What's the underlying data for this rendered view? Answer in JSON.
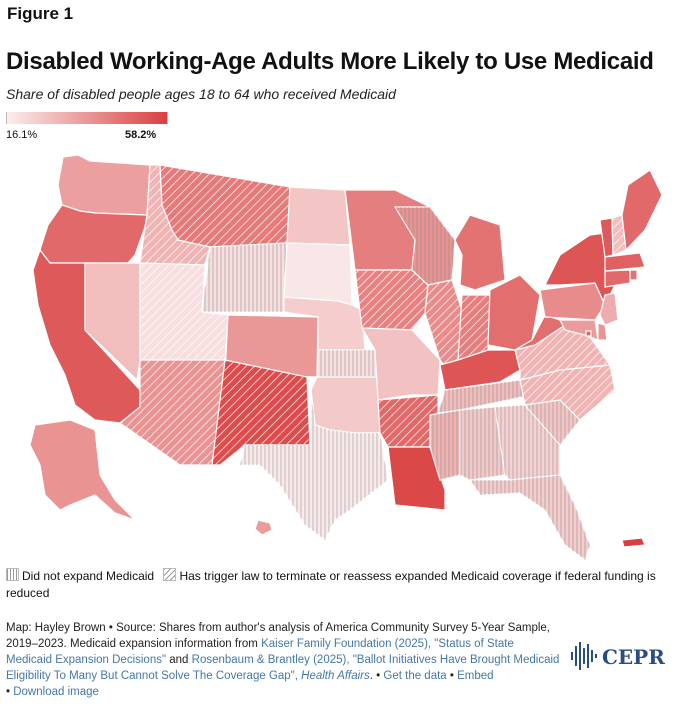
{
  "figure_label": "Figure 1",
  "title": "Disabled Working-Age Adults More Likely to Use Medicaid",
  "subtitle": "Share of disabled people ages 18 to 64 who received Medicaid",
  "legend": {
    "min_label": "16.1%",
    "max_label": "58.2%",
    "min_color": "#fbeeee",
    "max_color": "#d93f3f",
    "not_expanded_label": "Did not expand Medicaid",
    "trigger_law_label": "Has trigger law to terminate or reassess expanded Medicaid coverage if federal funding is reduced"
  },
  "chart_data": {
    "type": "choropleth",
    "title": "Disabled Working-Age Adults More Likely to Use Medicaid",
    "subtitle": "Share of disabled people ages 18 to 64 who received Medicaid",
    "scale": {
      "min": 16.1,
      "max": 58.2,
      "unit": "%"
    },
    "states": [
      {
        "id": "WA",
        "value": 35,
        "status": "expanded"
      },
      {
        "id": "OR",
        "value": 48,
        "status": "expanded"
      },
      {
        "id": "CA",
        "value": 52,
        "status": "expanded"
      },
      {
        "id": "NV",
        "value": 28,
        "status": "expanded"
      },
      {
        "id": "ID",
        "value": 30,
        "status": "trigger"
      },
      {
        "id": "MT",
        "value": 44,
        "status": "trigger"
      },
      {
        "id": "WY",
        "value": 20,
        "status": "not_expanded"
      },
      {
        "id": "UT",
        "value": 20,
        "status": "trigger"
      },
      {
        "id": "AZ",
        "value": 38,
        "status": "trigger"
      },
      {
        "id": "CO",
        "value": 37,
        "status": "expanded"
      },
      {
        "id": "NM",
        "value": 55,
        "status": "trigger"
      },
      {
        "id": "ND",
        "value": 26,
        "status": "expanded"
      },
      {
        "id": "SD",
        "value": 18,
        "status": "expanded"
      },
      {
        "id": "NE",
        "value": 24,
        "status": "expanded"
      },
      {
        "id": "KS",
        "value": 20,
        "status": "not_expanded"
      },
      {
        "id": "OK",
        "value": 25,
        "status": "expanded"
      },
      {
        "id": "TX",
        "value": 17,
        "status": "not_expanded"
      },
      {
        "id": "MN",
        "value": 43,
        "status": "expanded"
      },
      {
        "id": "IA",
        "value": 42,
        "status": "trigger"
      },
      {
        "id": "MO",
        "value": 27,
        "status": "expanded"
      },
      {
        "id": "AR",
        "value": 48,
        "status": "trigger"
      },
      {
        "id": "LA",
        "value": 56,
        "status": "expanded"
      },
      {
        "id": "WI",
        "value": 38,
        "status": "not_expanded"
      },
      {
        "id": "IL",
        "value": 40,
        "status": "trigger"
      },
      {
        "id": "MI",
        "value": 46,
        "status": "expanded"
      },
      {
        "id": "IN",
        "value": 43,
        "status": "trigger"
      },
      {
        "id": "OH",
        "value": 47,
        "status": "expanded"
      },
      {
        "id": "KY",
        "value": 53,
        "status": "expanded"
      },
      {
        "id": "TN",
        "value": 28,
        "status": "not_expanded"
      },
      {
        "id": "MS",
        "value": 30,
        "status": "not_expanded"
      },
      {
        "id": "AL",
        "value": 25,
        "status": "not_expanded"
      },
      {
        "id": "GA",
        "value": 23,
        "status": "not_expanded"
      },
      {
        "id": "FL",
        "value": 24,
        "status": "not_expanded"
      },
      {
        "id": "SC",
        "value": 26,
        "status": "not_expanded"
      },
      {
        "id": "NC",
        "value": 30,
        "status": "trigger"
      },
      {
        "id": "VA",
        "value": 30,
        "status": "trigger"
      },
      {
        "id": "WV",
        "value": 47,
        "status": "expanded"
      },
      {
        "id": "PA",
        "value": 40,
        "status": "expanded"
      },
      {
        "id": "NY",
        "value": 53,
        "status": "expanded"
      },
      {
        "id": "NJ",
        "value": 32,
        "status": "expanded"
      },
      {
        "id": "DE",
        "value": 38,
        "status": "expanded"
      },
      {
        "id": "MD",
        "value": 36,
        "status": "expanded"
      },
      {
        "id": "DC",
        "value": 50,
        "status": "expanded"
      },
      {
        "id": "VT",
        "value": 52,
        "status": "expanded"
      },
      {
        "id": "NH",
        "value": 28,
        "status": "trigger"
      },
      {
        "id": "ME",
        "value": 48,
        "status": "expanded"
      },
      {
        "id": "MA",
        "value": 50,
        "status": "expanded"
      },
      {
        "id": "RI",
        "value": 46,
        "status": "expanded"
      },
      {
        "id": "CT",
        "value": 48,
        "status": "expanded"
      },
      {
        "id": "AK",
        "value": 38,
        "status": "expanded"
      },
      {
        "id": "HI",
        "value": 36,
        "status": "expanded"
      },
      {
        "id": "PR",
        "value": 58.2,
        "status": "expanded"
      }
    ]
  },
  "source": {
    "map_credit": "Map: Hayley Brown",
    "sep": " • ",
    "source_intro": "Source: Shares from author's analysis of America Community Survey 5-Year Sample, 2019–2023. Medicaid expansion information from ",
    "link1": "Kaiser Family Foundation (2025), \"Status of State Medicaid Expansion Decisions\"",
    "and": " and ",
    "link2": "Rosenbaum & Brantley (2025), \"Ballot Initiatives Have Brought Medicaid Eligibility To Many But Cannot Solve The Coverage Gap\", ",
    "journal": "Health Affairs",
    "period": ".",
    "get_data": "Get the data",
    "embed": "Embed",
    "download": "Download image"
  },
  "logo_text": "CEPR"
}
